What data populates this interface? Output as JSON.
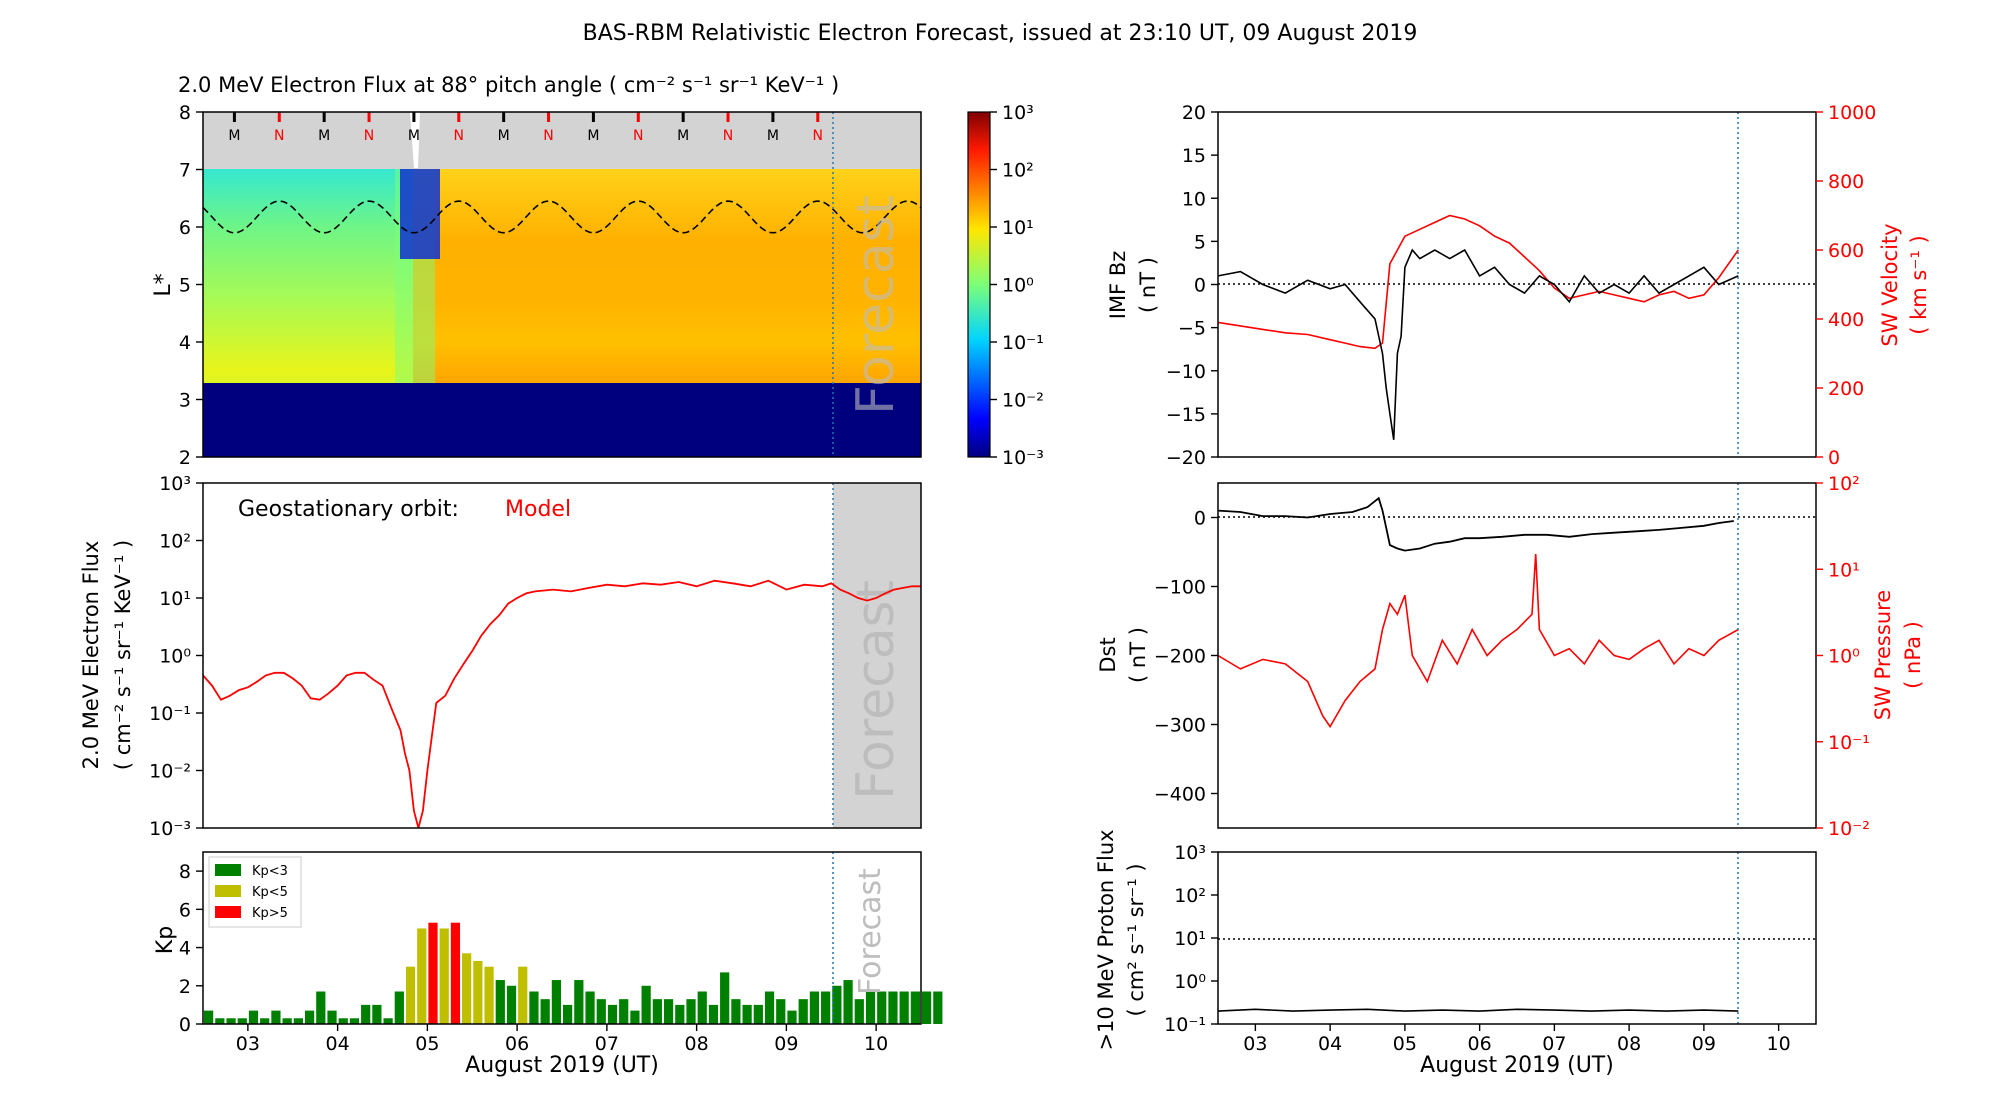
{
  "title": "BAS-RBM Relativistic Electron Forecast, issued at 23:10 UT, 09 August 2019",
  "colors": {
    "model_line": "#ff0000",
    "kp_low": "#008000",
    "kp_mid": "#bfbf00",
    "kp_high": "#ff0000",
    "forecast_shade": "#d3d3d3",
    "forecast_line": "#1f77b4",
    "black_series": "#000000",
    "red_series": "#ff0000"
  },
  "date_ticks": [
    "03",
    "04",
    "05",
    "06",
    "07",
    "08",
    "09",
    "10"
  ],
  "xlabel": "August 2019 (UT)",
  "forecast_label": "Forecast",
  "chart_data": [
    {
      "id": "lstar_spectrogram",
      "type": "heatmap",
      "title": "2.0 MeV Electron Flux at 88° pitch angle ( cm⁻² s⁻¹ sr⁻¹ KeV⁻¹ )",
      "ylabel": "L*",
      "ylim": [
        2,
        8
      ],
      "yticks": [
        "2",
        "3",
        "4",
        "5",
        "6",
        "7",
        "8"
      ],
      "xlim_days": [
        2.5,
        10.5
      ],
      "forecast_start_day": 9.46,
      "magnetopause_band": {
        "lmin": 7,
        "lmax": 8,
        "labels": [
          "M",
          "N",
          "M",
          "N",
          "M",
          "N",
          "M",
          "N",
          "M",
          "N",
          "M",
          "N",
          "M",
          "N"
        ]
      },
      "colorbar": {
        "scale": "log",
        "min": 0.001,
        "max": 1000,
        "labels": [
          "10⁻³",
          "10⁻²",
          "10⁻¹",
          "10⁰",
          "10¹",
          "10²",
          "10³"
        ]
      },
      "bands": [
        {
          "l_from": 2.0,
          "l_to": 3.2,
          "flux_before": 0.002,
          "flux_after": 0.002
        },
        {
          "l_from": 3.2,
          "l_to": 3.4,
          "flux_before": 0.05,
          "flux_after": 0.01
        },
        {
          "l_from": 3.4,
          "l_to": 4.5,
          "flux_before": 2,
          "flux_after": 60
        },
        {
          "l_from": 4.5,
          "l_to": 5.5,
          "flux_before": 2,
          "flux_after": 40
        },
        {
          "l_from": 5.5,
          "l_to": 7.0,
          "flux_before": 0.5,
          "flux_after": 20
        }
      ],
      "geo_lstar_range": [
        5.9,
        6.45
      ]
    },
    {
      "id": "geo_flux",
      "type": "line",
      "ylabel": "2.0 MeV Electron Flux ( cm⁻² s⁻¹ sr⁻¹ KeV⁻¹ )",
      "annotation": "Geostationary orbit:",
      "series_name": "Model",
      "yscale": "log",
      "ylim": [
        0.001,
        1000
      ],
      "yticks": [
        "10⁻³",
        "10⁻²",
        "10⁻¹",
        "10⁰",
        "10¹",
        "10²",
        "10³"
      ],
      "x": [
        2.5,
        2.6,
        2.7,
        2.8,
        2.9,
        3.0,
        3.1,
        3.2,
        3.3,
        3.4,
        3.5,
        3.6,
        3.7,
        3.8,
        3.9,
        4.0,
        4.1,
        4.2,
        4.3,
        4.4,
        4.5,
        4.6,
        4.7,
        4.75,
        4.8,
        4.85,
        4.9,
        4.95,
        5.0,
        5.05,
        5.1,
        5.2,
        5.3,
        5.4,
        5.5,
        5.6,
        5.7,
        5.8,
        5.9,
        6.0,
        6.1,
        6.2,
        6.4,
        6.6,
        6.8,
        7.0,
        7.2,
        7.4,
        7.6,
        7.8,
        8.0,
        8.2,
        8.4,
        8.6,
        8.8,
        9.0,
        9.2,
        9.4,
        9.5,
        9.6,
        9.7,
        9.8,
        9.9,
        10.0,
        10.1,
        10.2,
        10.3,
        10.4,
        10.5
      ],
      "y": [
        0.45,
        0.3,
        0.17,
        0.2,
        0.25,
        0.28,
        0.35,
        0.45,
        0.5,
        0.5,
        0.4,
        0.3,
        0.18,
        0.17,
        0.22,
        0.3,
        0.45,
        0.5,
        0.5,
        0.38,
        0.3,
        0.12,
        0.05,
        0.02,
        0.01,
        0.002,
        0.001,
        0.002,
        0.01,
        0.04,
        0.15,
        0.2,
        0.4,
        0.7,
        1.2,
        2.2,
        3.5,
        5.0,
        8.0,
        10.0,
        12.0,
        13.0,
        14.0,
        13.0,
        15.0,
        17.0,
        16.0,
        18.0,
        17.0,
        19.0,
        16.0,
        20.0,
        18.0,
        16.0,
        20.0,
        14.0,
        17.0,
        16.0,
        18.0,
        14.0,
        12.0,
        10.0,
        9.0,
        10.0,
        12.0,
        14.0,
        15.0,
        16.0,
        16.0
      ]
    },
    {
      "id": "kp_index",
      "type": "bar",
      "ylabel": "Kp",
      "ylim": [
        0,
        9
      ],
      "yticks": [
        "0",
        "2",
        "4",
        "6",
        "8"
      ],
      "legend": [
        "Kp<3",
        "Kp<5",
        "Kp>5"
      ],
      "legend_position": "top-left",
      "bar_start_day": 2.5,
      "bar_width_days": 0.125,
      "values": [
        0.7,
        0.3,
        0.3,
        0.3,
        0.7,
        0.3,
        0.7,
        0.3,
        0.3,
        0.7,
        1.7,
        0.7,
        0.3,
        0.3,
        1.0,
        1.0,
        0.3,
        1.7,
        3.0,
        5.0,
        5.3,
        5.0,
        5.3,
        3.7,
        3.3,
        3.0,
        2.3,
        2.0,
        3.0,
        1.7,
        1.3,
        2.3,
        1.0,
        2.3,
        1.7,
        1.3,
        1.0,
        1.3,
        0.7,
        2.0,
        1.3,
        1.3,
        1.0,
        1.3,
        1.7,
        1.0,
        2.7,
        1.3,
        1.0,
        1.0,
        1.7,
        1.3,
        0.7,
        1.3,
        1.7,
        1.7,
        2.0,
        2.3,
        1.3,
        1.7,
        1.7,
        1.7,
        1.7,
        1.7,
        1.7,
        1.7
      ]
    },
    {
      "id": "imf_bz_sw_velocity",
      "type": "line",
      "ylabel": "IMF Bz ( nT )",
      "ylim": [
        -20,
        20
      ],
      "yticks": [
        "−20",
        "−15",
        "−10",
        "−5",
        "0",
        "5",
        "10",
        "15",
        "20"
      ],
      "y2label": "SW Velocity ( km s⁻¹ )",
      "y2lim": [
        0,
        1000
      ],
      "y2ticks": [
        "0",
        "200",
        "400",
        "600",
        "800",
        "1000"
      ],
      "series": [
        {
          "name": "IMF Bz",
          "axis": "left",
          "x": [
            2.5,
            2.8,
            3.1,
            3.4,
            3.7,
            4.0,
            4.2,
            4.4,
            4.6,
            4.7,
            4.75,
            4.8,
            4.85,
            4.9,
            4.95,
            5.0,
            5.1,
            5.2,
            5.4,
            5.6,
            5.8,
            6.0,
            6.2,
            6.4,
            6.6,
            6.8,
            7.0,
            7.2,
            7.4,
            7.6,
            7.8,
            8.0,
            8.2,
            8.4,
            8.6,
            8.8,
            9.0,
            9.2,
            9.46
          ],
          "y": [
            1,
            1.5,
            0,
            -1,
            0.5,
            -0.5,
            0,
            -2,
            -4,
            -8,
            -12,
            -15,
            -18,
            -8,
            -6,
            2,
            4,
            3,
            4,
            3,
            4,
            1,
            2,
            0,
            -1,
            1,
            0,
            -2,
            1,
            -1,
            0,
            -1,
            1,
            -1,
            0,
            1,
            2,
            0,
            1
          ]
        },
        {
          "name": "SW Velocity",
          "axis": "right",
          "x": [
            2.5,
            2.8,
            3.1,
            3.4,
            3.7,
            4.0,
            4.2,
            4.4,
            4.6,
            4.7,
            4.8,
            4.9,
            5.0,
            5.1,
            5.2,
            5.4,
            5.6,
            5.8,
            6.0,
            6.2,
            6.4,
            6.6,
            6.8,
            7.0,
            7.2,
            7.4,
            7.6,
            7.8,
            8.0,
            8.2,
            8.4,
            8.6,
            8.8,
            9.0,
            9.2,
            9.46
          ],
          "y": [
            390,
            380,
            370,
            360,
            355,
            340,
            330,
            320,
            315,
            330,
            560,
            600,
            640,
            650,
            660,
            680,
            700,
            690,
            670,
            640,
            620,
            580,
            540,
            490,
            460,
            470,
            480,
            470,
            460,
            450,
            470,
            480,
            460,
            470,
            520,
            600
          ]
        }
      ]
    },
    {
      "id": "dst_sw_pressure",
      "type": "line",
      "ylabel": "Dst ( nT )",
      "ylim": [
        -450,
        50
      ],
      "yticks": [
        "−400",
        "−300",
        "−200",
        "−100",
        "0"
      ],
      "y2label": "SW Pressure ( nPa )",
      "y2scale": "log",
      "y2lim": [
        0.01,
        100
      ],
      "y2ticks": [
        "10⁻²",
        "10⁻¹",
        "10⁰",
        "10¹",
        "10²"
      ],
      "series": [
        {
          "name": "Dst",
          "axis": "left",
          "x": [
            2.5,
            2.8,
            3.1,
            3.4,
            3.7,
            4.0,
            4.3,
            4.5,
            4.65,
            4.7,
            4.8,
            4.9,
            5.0,
            5.2,
            5.4,
            5.6,
            5.8,
            6.0,
            6.3,
            6.6,
            6.9,
            7.2,
            7.5,
            7.8,
            8.1,
            8.4,
            8.7,
            9.0,
            9.2,
            9.4
          ],
          "y": [
            10,
            8,
            2,
            2,
            0,
            5,
            8,
            15,
            28,
            10,
            -40,
            -45,
            -48,
            -45,
            -38,
            -35,
            -30,
            -30,
            -28,
            -25,
            -25,
            -28,
            -24,
            -22,
            -20,
            -18,
            -15,
            -12,
            -8,
            -5
          ]
        },
        {
          "name": "SW Pressure",
          "axis": "right",
          "x": [
            2.5,
            2.8,
            3.1,
            3.4,
            3.7,
            3.9,
            4.0,
            4.2,
            4.4,
            4.6,
            4.7,
            4.8,
            4.9,
            5.0,
            5.1,
            5.3,
            5.5,
            5.7,
            5.9,
            6.1,
            6.3,
            6.5,
            6.7,
            6.75,
            6.8,
            7.0,
            7.2,
            7.4,
            7.6,
            7.8,
            8.0,
            8.2,
            8.4,
            8.6,
            8.8,
            9.0,
            9.2,
            9.46
          ],
          "y": [
            1.0,
            0.7,
            0.9,
            0.8,
            0.5,
            0.2,
            0.15,
            0.3,
            0.5,
            0.7,
            2.0,
            4.0,
            3.0,
            5.0,
            1.0,
            0.5,
            1.5,
            0.8,
            2.0,
            1.0,
            1.5,
            2.0,
            3.0,
            15.0,
            2.0,
            1.0,
            1.2,
            0.8,
            1.5,
            1.0,
            0.9,
            1.2,
            1.5,
            0.8,
            1.2,
            1.0,
            1.5,
            2.0
          ]
        }
      ]
    },
    {
      "id": "proton_flux",
      "type": "line",
      "ylabel": ">10 MeV Proton Flux ( cm² s⁻¹ sr⁻¹ )",
      "yscale": "log",
      "ylim": [
        0.1,
        1000
      ],
      "yticks": [
        "10⁻¹",
        "10⁰",
        "10¹",
        "10²",
        "10³"
      ],
      "threshold": 10,
      "series": [
        {
          "name": ">10 MeV Proton Flux",
          "x": [
            2.5,
            3.0,
            3.5,
            4.0,
            4.5,
            5.0,
            5.5,
            6.0,
            6.5,
            7.0,
            7.5,
            8.0,
            8.5,
            9.0,
            9.46
          ],
          "y": [
            0.2,
            0.22,
            0.2,
            0.21,
            0.22,
            0.2,
            0.21,
            0.2,
            0.22,
            0.21,
            0.2,
            0.21,
            0.2,
            0.21,
            0.2
          ]
        }
      ]
    }
  ]
}
